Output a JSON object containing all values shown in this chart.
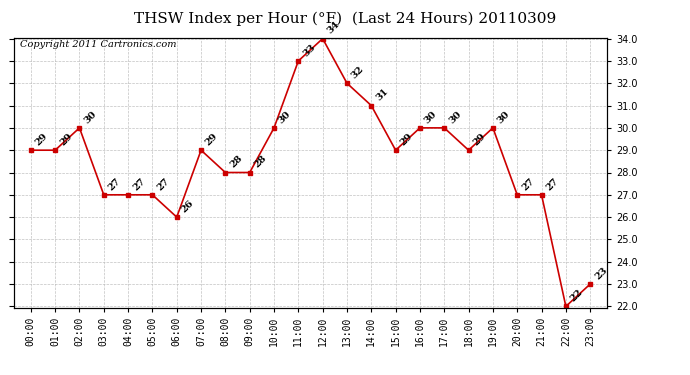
{
  "title": "THSW Index per Hour (°F)  (Last 24 Hours) 20110309",
  "copyright": "Copyright 2011 Cartronics.com",
  "hours": [
    "00:00",
    "01:00",
    "02:00",
    "03:00",
    "04:00",
    "05:00",
    "06:00",
    "07:00",
    "08:00",
    "09:00",
    "10:00",
    "11:00",
    "12:00",
    "13:00",
    "14:00",
    "15:00",
    "16:00",
    "17:00",
    "18:00",
    "19:00",
    "20:00",
    "21:00",
    "22:00",
    "23:00"
  ],
  "x_indices": [
    0,
    1,
    2,
    3,
    4,
    5,
    6,
    7,
    8,
    9,
    10,
    11,
    12,
    13,
    14,
    15,
    16,
    17,
    18,
    19,
    20,
    21,
    22,
    23
  ],
  "data_values": [
    29,
    29,
    30,
    27,
    27,
    27,
    26,
    29,
    28,
    28,
    30,
    33,
    34,
    32,
    31,
    29,
    30,
    30,
    29,
    30,
    27,
    27,
    22,
    23
  ],
  "ylim_min": 22.0,
  "ylim_max": 34.0,
  "yticks": [
    22.0,
    23.0,
    24.0,
    25.0,
    26.0,
    27.0,
    28.0,
    29.0,
    30.0,
    31.0,
    32.0,
    33.0,
    34.0
  ],
  "line_color": "#cc0000",
  "marker_color": "#cc0000",
  "bg_color": "#ffffff",
  "plot_bg_color": "#ffffff",
  "grid_color": "#bbbbbb",
  "title_fontsize": 11,
  "tick_fontsize": 7,
  "annotation_fontsize": 7,
  "copyright_fontsize": 7
}
